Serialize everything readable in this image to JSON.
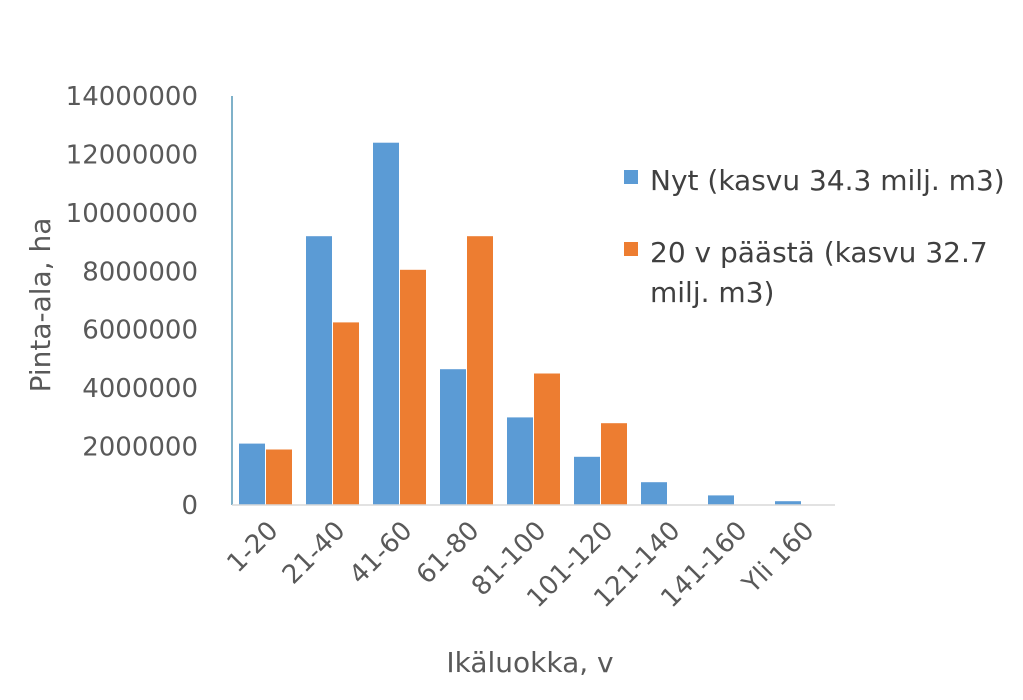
{
  "chart_data": {
    "type": "bar",
    "categories": [
      "1-20",
      "21-40",
      "41-60",
      "61-80",
      "81-100",
      "101-120",
      "121-140",
      "141-160",
      "Yli 160"
    ],
    "series": [
      {
        "name": "Nyt (kasvu 34.3 milj. m3)",
        "name_lines": [
          "Nyt (kasvu 34.3 milj. m3)"
        ],
        "color": "#5B9BD5",
        "values": [
          2100000,
          9200000,
          12400000,
          4650000,
          3000000,
          1650000,
          780000,
          330000,
          130000
        ]
      },
      {
        "name": "20 v päästä (kasvu 32.7 milj. m3)",
        "name_lines": [
          "20 v päästä (kasvu 32.7",
          "milj. m3)"
        ],
        "color": "#ED7D31",
        "values": [
          1900000,
          6250000,
          8050000,
          9200000,
          4500000,
          2800000,
          0,
          0,
          0
        ]
      }
    ],
    "yticks": [
      "0",
      "2000000",
      "4000000",
      "6000000",
      "8000000",
      "10000000",
      "12000000",
      "14000000"
    ],
    "ylim": [
      0,
      14000000
    ],
    "xlabel": "Ikäluokka, v",
    "ylabel": "Pinta-ala, ha",
    "grid": false,
    "legend": "right"
  }
}
